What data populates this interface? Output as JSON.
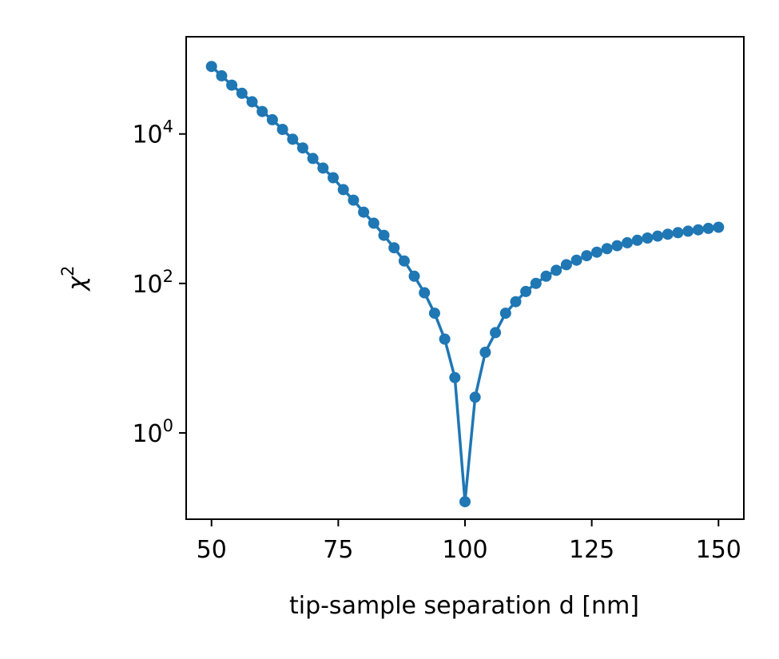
{
  "chart_data": {
    "type": "line",
    "title": "",
    "xlabel": "tip-sample separation d [nm]",
    "ylabel": {
      "symbol": "χ",
      "sup": "2"
    },
    "xlim": [
      45,
      155
    ],
    "ylim": [
      0.07,
      200000
    ],
    "yscale": "log",
    "grid": false,
    "legend": "none",
    "xticks": [
      {
        "value": 50,
        "label": "50"
      },
      {
        "value": 75,
        "label": "75"
      },
      {
        "value": 100,
        "label": "100"
      },
      {
        "value": 125,
        "label": "125"
      },
      {
        "value": 150,
        "label": "150"
      }
    ],
    "yticks": [
      {
        "value": 1,
        "base": "10",
        "exp": "0"
      },
      {
        "value": 100,
        "base": "10",
        "exp": "2"
      },
      {
        "value": 10000,
        "base": "10",
        "exp": "4"
      }
    ],
    "series": [
      {
        "color": "#1f77b4",
        "marker": "circle",
        "x": [
          50,
          52,
          54,
          56,
          58,
          60,
          62,
          64,
          66,
          68,
          70,
          72,
          74,
          76,
          78,
          80,
          82,
          84,
          86,
          88,
          90,
          92,
          94,
          96,
          98,
          100,
          102,
          104,
          106,
          108,
          110,
          112,
          114,
          116,
          118,
          120,
          122,
          124,
          126,
          128,
          130,
          132,
          134,
          136,
          138,
          140,
          142,
          144,
          146,
          148,
          150
        ],
        "y": [
          80000,
          60000,
          45000,
          35000,
          27000,
          20000,
          15500,
          11500,
          8500,
          6500,
          4700,
          3500,
          2600,
          1800,
          1300,
          900,
          640,
          440,
          300,
          200,
          125,
          75,
          40,
          18,
          5.5,
          0.12,
          3.0,
          12,
          22,
          40,
          57,
          78,
          100,
          125,
          150,
          178,
          205,
          235,
          262,
          292,
          320,
          350,
          378,
          405,
          430,
          456,
          478,
          500,
          522,
          545,
          565
        ]
      }
    ]
  }
}
